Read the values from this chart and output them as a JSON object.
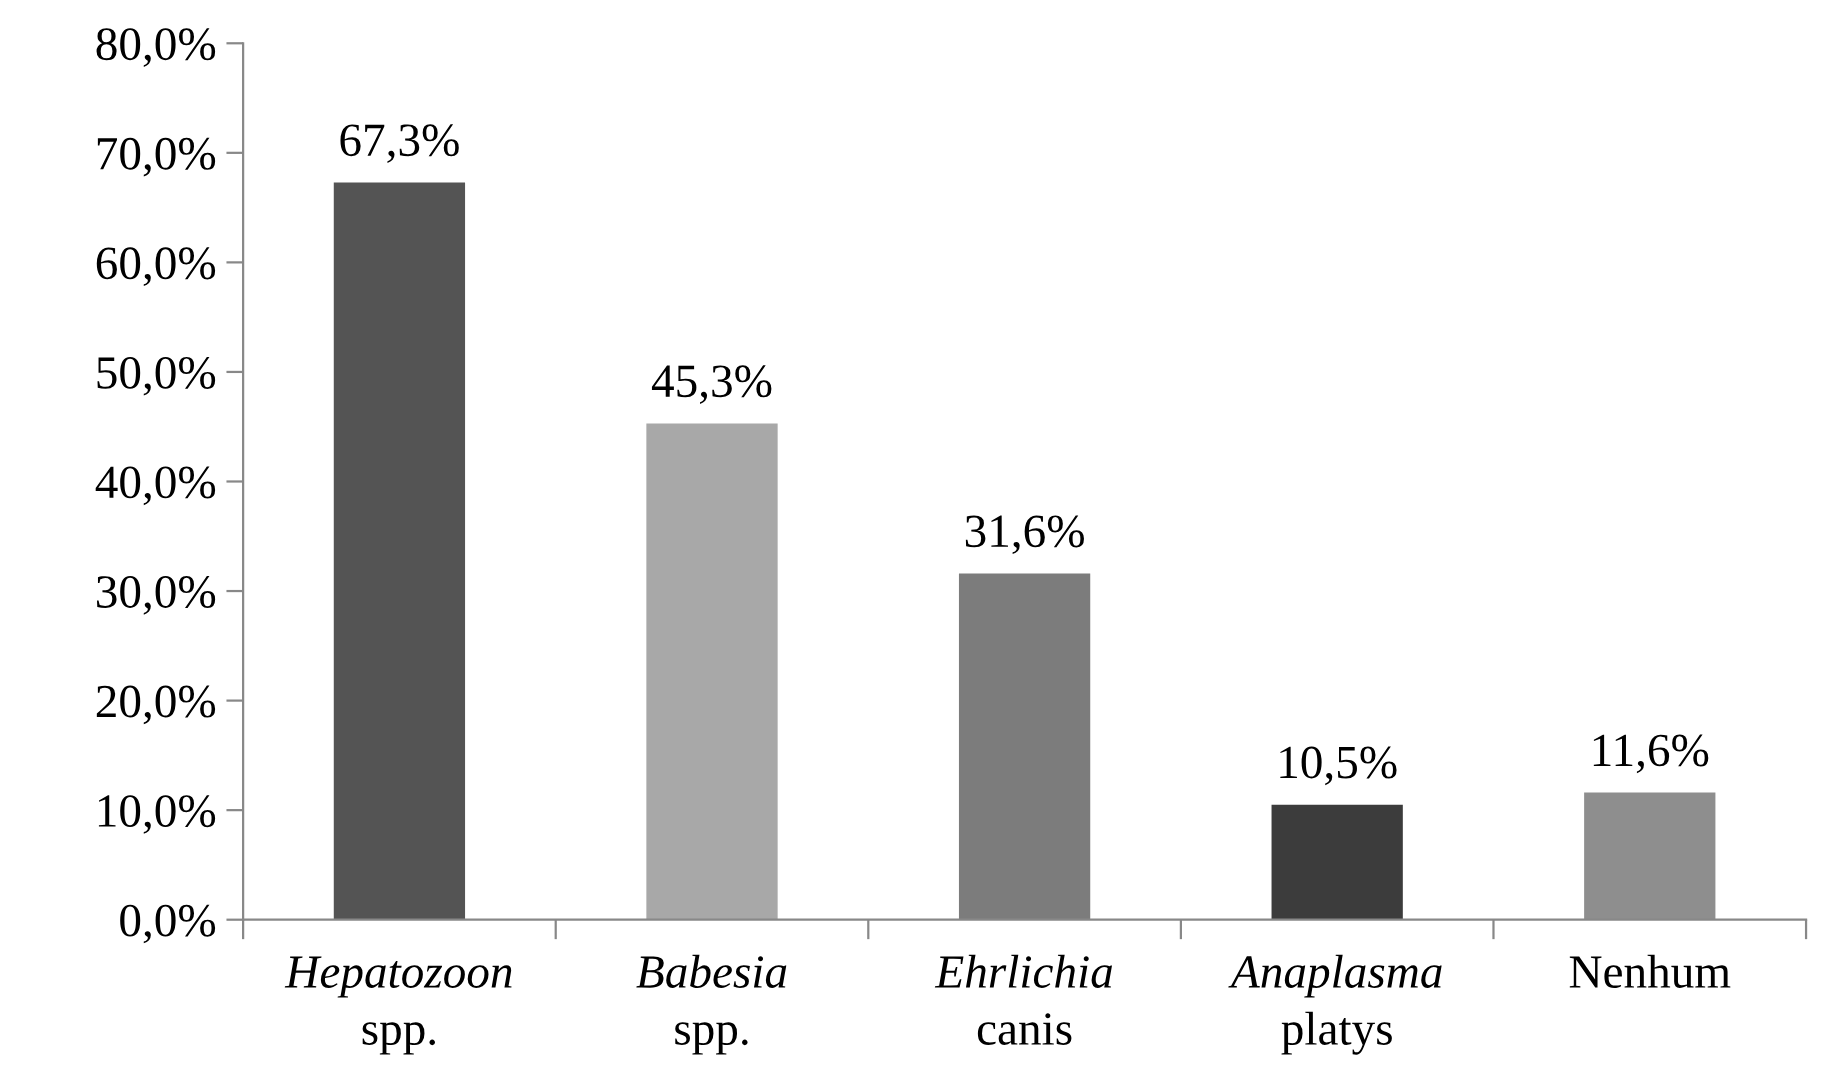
{
  "chart_data": {
    "type": "bar",
    "categories": [
      "Hepatozoon\nspp.",
      "Babesia\nspp.",
      "Ehrlichia\ncanis",
      "Anaplasma\nplatys",
      "Nenhum"
    ],
    "values": [
      67.3,
      45.3,
      31.6,
      10.5,
      11.6
    ],
    "colors": [
      "#545454",
      "#a8a8a8",
      "#7c7c7c",
      "#3c3c3c",
      "#8e8e8e"
    ],
    "value_labels": [
      "67,3%",
      "45,3%",
      "31,6%",
      "10,5%",
      "11,6%"
    ],
    "ylim": [
      0,
      80
    ],
    "yticks": [
      {
        "value": 0,
        "label": "0,0%"
      },
      {
        "value": 10,
        "label": "10,0%"
      },
      {
        "value": 20,
        "label": "20,0%"
      },
      {
        "value": 30,
        "label": "30,0%"
      },
      {
        "value": 40,
        "label": "40,0%"
      },
      {
        "value": 50,
        "label": "50,0%"
      },
      {
        "value": 60,
        "label": "60,0%"
      },
      {
        "value": 70,
        "label": "70,0%"
      },
      {
        "value": 80,
        "label": "80,0%"
      }
    ],
    "grid": false,
    "legend": false
  }
}
